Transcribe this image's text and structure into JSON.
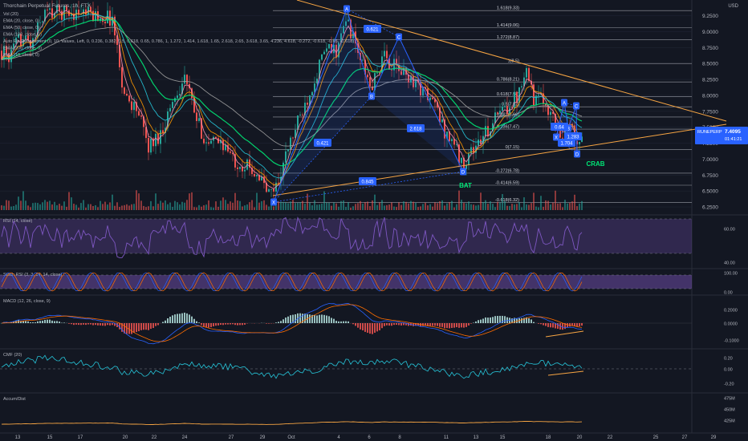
{
  "colors": {
    "background": "#131722",
    "grid": "#1f2432",
    "up": "#26a69a",
    "down": "#ef5350",
    "text": "#b2b5be",
    "fib": "#d1d4dc",
    "trend": "#f7a543",
    "harmonic": "#2962ff",
    "harmonic_fill": "rgba(41,98,255,0.12)",
    "rsi": "#7e57c2",
    "rsi_band": "rgba(126,87,194,0.28)",
    "stoch_band": "rgba(126,87,194,0.45)",
    "macd_up": "#26a69a",
    "macd_up_light": "#b2dfdb",
    "macd_down": "#ef5350",
    "macd_down_light": "#ffcdd2",
    "macd_line": "#2962ff",
    "signal_line": "#ff6d00",
    "cmf_line": "#26c6da",
    "accdist_line": "#f7a543",
    "ema_colors": [
      "#f48fb1",
      "#ff9800",
      "#26c6da",
      "#00e676",
      "#9e9e9e"
    ],
    "price_tag": "#2962ff",
    "green_label": "#00e676"
  },
  "header": {
    "title": "Thorchain Perpetual Futures, 1h, FTX",
    "legend": [
      "Vol (20)",
      "EMA (20, close, 0)",
      "EMA (50, close, 0)",
      "EMA (100, close, 0)",
      "Auto Fib Retracement (0, 10, Values, Left, 0, 0.236, 0.382, 0.5, 0.618, 0.65, 0.786, 1, 1.272, 1.414, 1.618, 1.65, 2.618, 2.65, 3.618, 3.65, 4.236, 4.618, -0.272, -0.618, -0.65, -1.618)",
      "EMA (200, close, 0)",
      "EMA (10, close, 0)"
    ]
  },
  "main_axis": {
    "currency": "USD",
    "ticks": [
      "9.2500",
      "9.0000",
      "8.7500",
      "8.5000",
      "8.2500",
      "8.0000",
      "7.7500",
      "7.5000",
      "7.2500",
      "7.0000",
      "6.7500",
      "6.5000",
      "6.2500"
    ],
    "price_label": "RUNEPERP",
    "price_value": "7.4095",
    "countdown": "01:41:21"
  },
  "x_axis": {
    "labels": [
      "13",
      "15",
      "17",
      "20",
      "22",
      "24",
      "27",
      "29",
      "Oct",
      "4",
      "6",
      "8",
      "11",
      "13",
      "15",
      "18",
      "20",
      "22",
      "25",
      "27",
      "29"
    ]
  },
  "fib_levels": [
    {
      "label": "1.618(9.33)",
      "price": 9.33
    },
    {
      "label": "1.414(9.06)",
      "price": 9.06
    },
    {
      "label": "1.272(8.87)",
      "price": 8.87
    },
    {
      "label": "1(8.5)",
      "price": 8.5
    },
    {
      "label": "0.786(8.21)",
      "price": 8.21
    },
    {
      "label": "0.618(7.98)",
      "price": 7.98
    },
    {
      "label": "0.5(7.82)",
      "price": 7.82
    },
    {
      "label": "0.382(7.66)",
      "price": 7.66
    },
    {
      "label": "0.236(7.47)",
      "price": 7.47
    },
    {
      "label": "0(7.15)",
      "price": 7.15
    },
    {
      "label": "-0.272(6.78)",
      "price": 6.78
    },
    {
      "label": "-0.414(6.59)",
      "price": 6.59
    },
    {
      "label": "-0.618(6.32)",
      "price": 6.32
    }
  ],
  "pattern_labels": {
    "bat": "BAT",
    "crab": "CRAB",
    "bat_ratios": [
      "0.621",
      "0.421",
      "2.618",
      "0.845"
    ],
    "crab_ratios": [
      "0.64",
      "1.283",
      "1.704"
    ],
    "point_names": [
      "X",
      "A",
      "B",
      "C",
      "D"
    ]
  },
  "panels": {
    "rsi": {
      "title": "RSI (14, close)",
      "ticks": [
        "60.00",
        "40.00"
      ]
    },
    "stoch": {
      "title": "Stoch RSI (3, 3, 14, 14, close)",
      "ticks": [
        "100.00",
        "0.00"
      ]
    },
    "macd": {
      "title": "MACD (12, 26, close, 9)",
      "ticks": [
        "0.2000",
        "0.0000",
        "-0.1000"
      ]
    },
    "cmf": {
      "title": "CMF (20)",
      "ticks": [
        "0.20",
        "0.00",
        "-0.20"
      ]
    },
    "accdist": {
      "title": "Accum/Dist",
      "ticks": [
        "475M",
        "450M",
        "425M"
      ]
    }
  },
  "chart_data": {
    "type": "candlestick",
    "symbol": "RUNEPERP",
    "timeframe": "1h",
    "annotations": [
      "BAT",
      "CRAB"
    ],
    "price_range": [
      6.2,
      9.45
    ],
    "series": [
      {
        "name": "close",
        "anchors": [
          [
            0,
            8.7
          ],
          [
            12,
            8.6
          ],
          [
            25,
            8.9
          ],
          [
            40,
            8.8
          ],
          [
            55,
            9.3
          ],
          [
            75,
            9.3
          ],
          [
            100,
            9.3
          ],
          [
            140,
            9.2
          ],
          [
            155,
            8.0
          ],
          [
            170,
            7.8
          ],
          [
            185,
            7.2
          ],
          [
            200,
            7.4
          ],
          [
            215,
            7.9
          ],
          [
            230,
            8.3
          ],
          [
            245,
            7.6
          ],
          [
            260,
            7.2
          ],
          [
            275,
            7.3
          ],
          [
            290,
            7.0
          ],
          [
            305,
            6.9
          ],
          [
            320,
            6.8
          ],
          [
            335,
            6.45
          ],
          [
            345,
            6.6
          ],
          [
            360,
            7.2
          ],
          [
            375,
            7.7
          ],
          [
            390,
            8.2
          ],
          [
            405,
            8.7
          ],
          [
            420,
            8.7
          ],
          [
            432,
            9.2
          ],
          [
            448,
            8.6
          ],
          [
            462,
            8.1
          ],
          [
            478,
            8.6
          ],
          [
            495,
            8.4
          ],
          [
            510,
            8.3
          ],
          [
            525,
            8.1
          ],
          [
            540,
            7.9
          ],
          [
            555,
            7.4
          ],
          [
            565,
            7.3
          ],
          [
            575,
            6.9
          ],
          [
            585,
            7.1
          ],
          [
            600,
            7.3
          ],
          [
            615,
            7.6
          ],
          [
            630,
            7.8
          ],
          [
            645,
            8.0
          ],
          [
            655,
            8.5
          ],
          [
            665,
            7.95
          ],
          [
            680,
            7.9
          ],
          [
            690,
            7.6
          ],
          [
            700,
            7.4
          ],
          [
            710,
            7.55
          ],
          [
            718,
            7.3
          ],
          [
            726,
            7.41
          ]
        ]
      }
    ]
  }
}
